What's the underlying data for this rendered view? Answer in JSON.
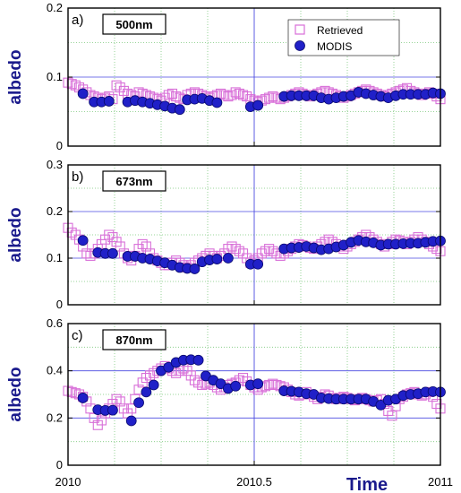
{
  "colors": {
    "retrieved": "#d86fd8",
    "modis_fill": "#2020c8",
    "modis_edge": "#0a0a70",
    "axis_label": "#1a1a8c",
    "grid_blue": "#4a4ae0",
    "grid_green": "#7ac87a"
  },
  "legend": {
    "retrieved_label": "Retrieved",
    "modis_label": "MODIS"
  },
  "xaxis": {
    "label": "Time",
    "ticks": [
      "2010",
      "2010.5",
      "2011"
    ]
  },
  "chart_data": [
    {
      "type": "scatter",
      "panel_label": "a)",
      "wavelength_label": "500nm",
      "ylabel": "albedo",
      "xlim": [
        2010,
        2011
      ],
      "ylim": [
        0,
        0.2
      ],
      "yticks": [
        "0",
        "0.1",
        "0.2"
      ],
      "series": [
        {
          "name": "Retrieved",
          "x": [
            2010.0,
            2010.01,
            2010.02,
            2010.03,
            2010.04,
            2010.05,
            2010.06,
            2010.07,
            2010.08,
            2010.09,
            2010.1,
            2010.11,
            2010.12,
            2010.13,
            2010.14,
            2010.15,
            2010.16,
            2010.17,
            2010.18,
            2010.19,
            2010.2,
            2010.21,
            2010.22,
            2010.23,
            2010.24,
            2010.25,
            2010.26,
            2010.27,
            2010.28,
            2010.29,
            2010.3,
            2010.31,
            2010.32,
            2010.33,
            2010.34,
            2010.35,
            2010.36,
            2010.37,
            2010.38,
            2010.39,
            2010.4,
            2010.41,
            2010.42,
            2010.43,
            2010.44,
            2010.45,
            2010.46,
            2010.47,
            2010.48,
            2010.49,
            2010.5,
            2010.51,
            2010.52,
            2010.53,
            2010.54,
            2010.55,
            2010.56,
            2010.57,
            2010.58,
            2010.59,
            2010.6,
            2010.61,
            2010.62,
            2010.63,
            2010.64,
            2010.65,
            2010.66,
            2010.67,
            2010.68,
            2010.69,
            2010.7,
            2010.71,
            2010.72,
            2010.73,
            2010.74,
            2010.75,
            2010.76,
            2010.77,
            2010.78,
            2010.79,
            2010.8,
            2010.81,
            2010.82,
            2010.83,
            2010.84,
            2010.85,
            2010.86,
            2010.87,
            2010.88,
            2010.89,
            2010.9,
            2010.91,
            2010.92,
            2010.93,
            2010.94,
            2010.95,
            2010.96,
            2010.97,
            2010.98,
            2010.99,
            2011.0
          ],
          "y": [
            0.092,
            0.09,
            0.088,
            0.085,
            0.082,
            0.078,
            0.074,
            0.072,
            0.07,
            0.068,
            0.07,
            0.072,
            0.068,
            0.088,
            0.085,
            0.08,
            0.076,
            0.074,
            0.072,
            0.078,
            0.076,
            0.074,
            0.072,
            0.07,
            0.068,
            0.066,
            0.07,
            0.074,
            0.076,
            0.072,
            0.07,
            0.068,
            0.074,
            0.076,
            0.078,
            0.076,
            0.074,
            0.072,
            0.07,
            0.072,
            0.074,
            0.076,
            0.074,
            0.072,
            0.074,
            0.078,
            0.076,
            0.074,
            0.072,
            0.068,
            0.066,
            0.064,
            0.066,
            0.068,
            0.07,
            0.072,
            0.07,
            0.068,
            0.07,
            0.072,
            0.074,
            0.076,
            0.078,
            0.076,
            0.074,
            0.072,
            0.074,
            0.076,
            0.078,
            0.08,
            0.078,
            0.076,
            0.074,
            0.072,
            0.07,
            0.072,
            0.074,
            0.076,
            0.078,
            0.08,
            0.082,
            0.08,
            0.078,
            0.076,
            0.074,
            0.072,
            0.074,
            0.076,
            0.078,
            0.08,
            0.082,
            0.084,
            0.08,
            0.078,
            0.076,
            0.074,
            0.076,
            0.078,
            0.076,
            0.072,
            0.068
          ]
        },
        {
          "name": "MODIS",
          "x": [
            2010.04,
            2010.07,
            2010.09,
            2010.11,
            2010.16,
            2010.18,
            2010.2,
            2010.22,
            2010.24,
            2010.26,
            2010.28,
            2010.3,
            2010.32,
            2010.34,
            2010.36,
            2010.38,
            2010.4,
            2010.49,
            2010.51,
            2010.58,
            2010.6,
            2010.62,
            2010.64,
            2010.66,
            2010.68,
            2010.7,
            2010.72,
            2010.74,
            2010.76,
            2010.78,
            2010.8,
            2010.82,
            2010.84,
            2010.86,
            2010.88,
            2010.9,
            2010.92,
            2010.94,
            2010.96,
            2010.98,
            2011.0
          ],
          "y": [
            0.076,
            0.064,
            0.064,
            0.065,
            0.064,
            0.066,
            0.064,
            0.062,
            0.06,
            0.058,
            0.055,
            0.053,
            0.067,
            0.068,
            0.069,
            0.066,
            0.063,
            0.057,
            0.059,
            0.072,
            0.073,
            0.073,
            0.073,
            0.073,
            0.07,
            0.068,
            0.07,
            0.072,
            0.073,
            0.078,
            0.076,
            0.074,
            0.072,
            0.07,
            0.073,
            0.075,
            0.075,
            0.075,
            0.075,
            0.077,
            0.076
          ]
        }
      ]
    },
    {
      "type": "scatter",
      "panel_label": "b)",
      "wavelength_label": "673nm",
      "ylabel": "albedo",
      "xlim": [
        2010,
        2011
      ],
      "ylim": [
        0,
        0.3
      ],
      "yticks": [
        "0",
        "0.1",
        "0.2",
        "0.3"
      ],
      "series": [
        {
          "name": "Retrieved",
          "x": [
            2010.0,
            2010.01,
            2010.02,
            2010.03,
            2010.04,
            2010.05,
            2010.06,
            2010.07,
            2010.08,
            2010.09,
            2010.1,
            2010.11,
            2010.12,
            2010.13,
            2010.14,
            2010.15,
            2010.16,
            2010.17,
            2010.18,
            2010.19,
            2010.2,
            2010.21,
            2010.22,
            2010.23,
            2010.24,
            2010.25,
            2010.26,
            2010.27,
            2010.28,
            2010.29,
            2010.3,
            2010.31,
            2010.32,
            2010.33,
            2010.34,
            2010.35,
            2010.36,
            2010.37,
            2010.38,
            2010.39,
            2010.4,
            2010.41,
            2010.42,
            2010.43,
            2010.44,
            2010.45,
            2010.46,
            2010.47,
            2010.48,
            2010.49,
            2010.5,
            2010.51,
            2010.52,
            2010.53,
            2010.54,
            2010.55,
            2010.56,
            2010.57,
            2010.58,
            2010.59,
            2010.6,
            2010.61,
            2010.62,
            2010.63,
            2010.64,
            2010.65,
            2010.66,
            2010.67,
            2010.68,
            2010.69,
            2010.7,
            2010.71,
            2010.72,
            2010.73,
            2010.74,
            2010.75,
            2010.76,
            2010.77,
            2010.78,
            2010.79,
            2010.8,
            2010.81,
            2010.82,
            2010.83,
            2010.84,
            2010.85,
            2010.86,
            2010.87,
            2010.88,
            2010.89,
            2010.9,
            2010.91,
            2010.92,
            2010.93,
            2010.94,
            2010.95,
            2010.96,
            2010.97,
            2010.98,
            2010.99,
            2011.0
          ],
          "y": [
            0.165,
            0.155,
            0.15,
            0.14,
            0.125,
            0.11,
            0.105,
            0.11,
            0.12,
            0.13,
            0.14,
            0.15,
            0.145,
            0.135,
            0.125,
            0.11,
            0.1,
            0.095,
            0.105,
            0.12,
            0.13,
            0.125,
            0.11,
            0.1,
            0.095,
            0.09,
            0.085,
            0.085,
            0.09,
            0.095,
            0.09,
            0.085,
            0.08,
            0.085,
            0.09,
            0.095,
            0.1,
            0.105,
            0.11,
            0.105,
            0.1,
            0.105,
            0.11,
            0.12,
            0.125,
            0.12,
            0.115,
            0.11,
            0.1,
            0.09,
            0.095,
            0.1,
            0.11,
            0.115,
            0.12,
            0.115,
            0.11,
            0.105,
            0.11,
            0.115,
            0.12,
            0.125,
            0.13,
            0.128,
            0.125,
            0.122,
            0.12,
            0.125,
            0.13,
            0.135,
            0.14,
            0.135,
            0.13,
            0.125,
            0.12,
            0.125,
            0.13,
            0.135,
            0.14,
            0.145,
            0.15,
            0.145,
            0.14,
            0.135,
            0.13,
            0.125,
            0.13,
            0.135,
            0.14,
            0.138,
            0.135,
            0.13,
            0.135,
            0.14,
            0.145,
            0.14,
            0.135,
            0.13,
            0.125,
            0.12,
            0.115
          ]
        },
        {
          "name": "MODIS",
          "x": [
            2010.04,
            2010.08,
            2010.1,
            2010.12,
            2010.16,
            2010.18,
            2010.2,
            2010.22,
            2010.24,
            2010.26,
            2010.28,
            2010.3,
            2010.32,
            2010.34,
            2010.36,
            2010.38,
            2010.4,
            2010.43,
            2010.49,
            2010.51,
            2010.58,
            2010.6,
            2010.62,
            2010.64,
            2010.66,
            2010.68,
            2010.7,
            2010.72,
            2010.74,
            2010.76,
            2010.78,
            2010.8,
            2010.82,
            2010.84,
            2010.86,
            2010.88,
            2010.9,
            2010.92,
            2010.94,
            2010.96,
            2010.98,
            2011.0
          ],
          "y": [
            0.138,
            0.112,
            0.11,
            0.11,
            0.104,
            0.104,
            0.1,
            0.098,
            0.094,
            0.09,
            0.085,
            0.08,
            0.078,
            0.077,
            0.092,
            0.096,
            0.098,
            0.1,
            0.087,
            0.087,
            0.12,
            0.122,
            0.123,
            0.125,
            0.122,
            0.118,
            0.12,
            0.124,
            0.128,
            0.134,
            0.138,
            0.135,
            0.133,
            0.128,
            0.13,
            0.13,
            0.131,
            0.132,
            0.132,
            0.134,
            0.136,
            0.137
          ]
        }
      ]
    },
    {
      "type": "scatter",
      "panel_label": "c)",
      "wavelength_label": "870nm",
      "ylabel": "albedo",
      "xlim": [
        2010,
        2011
      ],
      "ylim": [
        0,
        0.6
      ],
      "yticks": [
        "0",
        "0.2",
        "0.4",
        "0.6"
      ],
      "series": [
        {
          "name": "Retrieved",
          "x": [
            2010.0,
            2010.01,
            2010.02,
            2010.03,
            2010.04,
            2010.05,
            2010.06,
            2010.07,
            2010.08,
            2010.09,
            2010.1,
            2010.11,
            2010.12,
            2010.13,
            2010.14,
            2010.15,
            2010.16,
            2010.17,
            2010.18,
            2010.19,
            2010.2,
            2010.21,
            2010.22,
            2010.23,
            2010.24,
            2010.25,
            2010.26,
            2010.27,
            2010.28,
            2010.29,
            2010.3,
            2010.31,
            2010.32,
            2010.33,
            2010.34,
            2010.35,
            2010.36,
            2010.37,
            2010.38,
            2010.39,
            2010.4,
            2010.41,
            2010.42,
            2010.43,
            2010.44,
            2010.45,
            2010.46,
            2010.47,
            2010.48,
            2010.49,
            2010.5,
            2010.51,
            2010.52,
            2010.53,
            2010.54,
            2010.55,
            2010.56,
            2010.57,
            2010.58,
            2010.59,
            2010.6,
            2010.61,
            2010.62,
            2010.63,
            2010.64,
            2010.65,
            2010.66,
            2010.67,
            2010.68,
            2010.69,
            2010.7,
            2010.71,
            2010.72,
            2010.73,
            2010.74,
            2010.75,
            2010.76,
            2010.77,
            2010.78,
            2010.79,
            2010.8,
            2010.81,
            2010.82,
            2010.83,
            2010.84,
            2010.85,
            2010.86,
            2010.87,
            2010.88,
            2010.89,
            2010.9,
            2010.91,
            2010.92,
            2010.93,
            2010.94,
            2010.95,
            2010.96,
            2010.97,
            2010.98,
            2010.99,
            2011.0
          ],
          "y": [
            0.315,
            0.31,
            0.305,
            0.3,
            0.29,
            0.27,
            0.24,
            0.2,
            0.17,
            0.19,
            0.22,
            0.24,
            0.26,
            0.28,
            0.27,
            0.24,
            0.22,
            0.24,
            0.28,
            0.32,
            0.35,
            0.37,
            0.38,
            0.39,
            0.4,
            0.41,
            0.42,
            0.41,
            0.4,
            0.39,
            0.4,
            0.41,
            0.4,
            0.38,
            0.36,
            0.35,
            0.34,
            0.345,
            0.35,
            0.34,
            0.33,
            0.32,
            0.33,
            0.34,
            0.345,
            0.35,
            0.36,
            0.37,
            0.355,
            0.34,
            0.33,
            0.32,
            0.33,
            0.335,
            0.34,
            0.345,
            0.34,
            0.335,
            0.33,
            0.32,
            0.31,
            0.3,
            0.295,
            0.3,
            0.31,
            0.3,
            0.29,
            0.28,
            0.29,
            0.3,
            0.295,
            0.285,
            0.28,
            0.285,
            0.29,
            0.285,
            0.28,
            0.275,
            0.28,
            0.285,
            0.28,
            0.275,
            0.27,
            0.275,
            0.28,
            0.26,
            0.23,
            0.21,
            0.25,
            0.28,
            0.29,
            0.3,
            0.305,
            0.31,
            0.3,
            0.295,
            0.3,
            0.31,
            0.29,
            0.26,
            0.24
          ]
        },
        {
          "name": "MODIS",
          "x": [
            2010.04,
            2010.08,
            2010.1,
            2010.12,
            2010.17,
            2010.19,
            2010.21,
            2010.23,
            2010.25,
            2010.27,
            2010.29,
            2010.31,
            2010.33,
            2010.35,
            2010.37,
            2010.39,
            2010.41,
            2010.43,
            2010.45,
            2010.49,
            2010.51,
            2010.58,
            2010.6,
            2010.62,
            2010.64,
            2010.66,
            2010.68,
            2010.7,
            2010.72,
            2010.74,
            2010.76,
            2010.78,
            2010.8,
            2010.82,
            2010.84,
            2010.86,
            2010.88,
            2010.9,
            2010.92,
            2010.94,
            2010.96,
            2010.98,
            2011.0
          ],
          "y": [
            0.285,
            0.235,
            0.232,
            0.233,
            0.188,
            0.265,
            0.31,
            0.34,
            0.4,
            0.415,
            0.435,
            0.445,
            0.447,
            0.445,
            0.378,
            0.36,
            0.345,
            0.325,
            0.335,
            0.34,
            0.345,
            0.315,
            0.313,
            0.31,
            0.303,
            0.3,
            0.285,
            0.282,
            0.28,
            0.28,
            0.28,
            0.28,
            0.28,
            0.27,
            0.255,
            0.275,
            0.28,
            0.295,
            0.3,
            0.303,
            0.31,
            0.312,
            0.31
          ]
        }
      ]
    }
  ]
}
